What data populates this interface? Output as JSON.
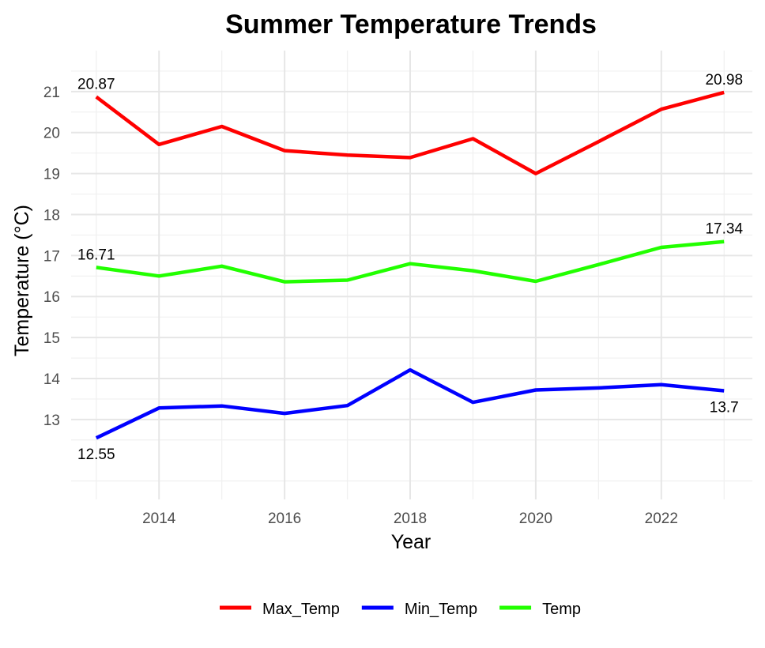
{
  "chart_data": {
    "type": "line",
    "title": "Summer Temperature Trends",
    "xlabel": "Year",
    "ylabel": "Temperature (°C)",
    "x": [
      2013,
      2014,
      2015,
      2016,
      2017,
      2018,
      2019,
      2020,
      2021,
      2022,
      2023
    ],
    "xlim": [
      2012.6,
      2023.45
    ],
    "ylim": [
      11.05,
      22.0
    ],
    "x_ticks": [
      2014,
      2016,
      2018,
      2020,
      2022
    ],
    "y_ticks": [
      13,
      14,
      15,
      16,
      17,
      18,
      19,
      20,
      21
    ],
    "grid": true,
    "legend_position": "bottom",
    "series": [
      {
        "name": "Max_Temp",
        "color": "#ff0000",
        "values": [
          20.87,
          19.71,
          20.15,
          19.56,
          19.45,
          19.39,
          19.85,
          19.0,
          19.78,
          20.57,
          20.98
        ],
        "labels": [
          {
            "x": 2013,
            "y": 20.87,
            "text": "20.87",
            "position": "above"
          },
          {
            "x": 2023,
            "y": 20.98,
            "text": "20.98",
            "position": "above"
          }
        ]
      },
      {
        "name": "Min_Temp",
        "color": "#0000ff",
        "values": [
          12.55,
          13.28,
          13.33,
          13.15,
          13.34,
          14.21,
          13.42,
          13.72,
          13.77,
          13.85,
          13.7
        ],
        "labels": [
          {
            "x": 2013,
            "y": 12.55,
            "text": "12.55",
            "position": "below"
          },
          {
            "x": 2023,
            "y": 13.7,
            "text": "13.7",
            "position": "below"
          }
        ]
      },
      {
        "name": "Temp",
        "color": "#22ff00",
        "values": [
          16.71,
          16.5,
          16.74,
          16.36,
          16.4,
          16.8,
          16.63,
          16.37,
          16.78,
          17.2,
          17.34
        ],
        "labels": [
          {
            "x": 2013,
            "y": 16.71,
            "text": "16.71",
            "position": "above"
          },
          {
            "x": 2023,
            "y": 17.34,
            "text": "17.34",
            "position": "above"
          }
        ]
      }
    ]
  }
}
